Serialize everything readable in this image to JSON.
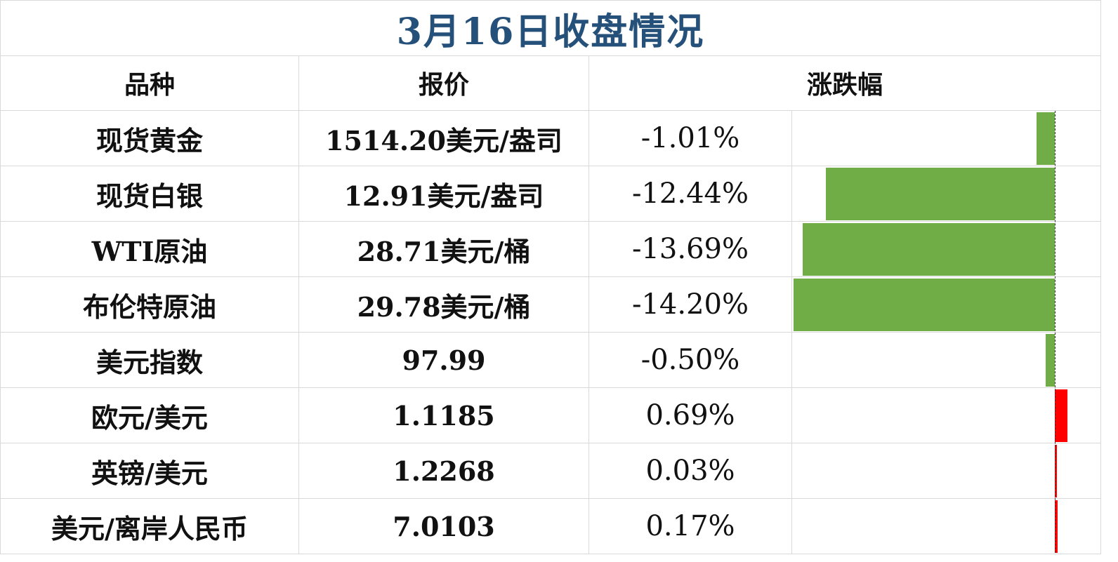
{
  "title": "3月16日收盘情况",
  "headers": [
    "品种",
    "报价",
    "涨跌幅"
  ],
  "colors": {
    "title": "#24507a",
    "down": "#70ad47",
    "up": "#ff0000"
  },
  "rows": [
    {
      "name": "现货黄金",
      "price": "1514.20美元/盎司",
      "change": "-1.01%",
      "value": -1.01
    },
    {
      "name": "现货白银",
      "price": "12.91美元/盎司",
      "change": "-12.44%",
      "value": -12.44
    },
    {
      "name": "WTI原油",
      "price": "28.71美元/桶",
      "change": "-13.69%",
      "value": -13.69
    },
    {
      "name": "布伦特原油",
      "price": "29.78美元/桶",
      "change": "-14.20%",
      "value": -14.2
    },
    {
      "name": "美元指数",
      "price": "97.99",
      "change": "-0.50%",
      "value": -0.5
    },
    {
      "name": "欧元/美元",
      "price": "1.1185",
      "change": "0.69%",
      "value": 0.69
    },
    {
      "name": "英镑/美元",
      "price": "1.2268",
      "change": "0.03%",
      "value": 0.03
    },
    {
      "name": "美元/离岸人民币",
      "price": "7.0103",
      "change": "0.17%",
      "value": 0.17
    }
  ]
}
